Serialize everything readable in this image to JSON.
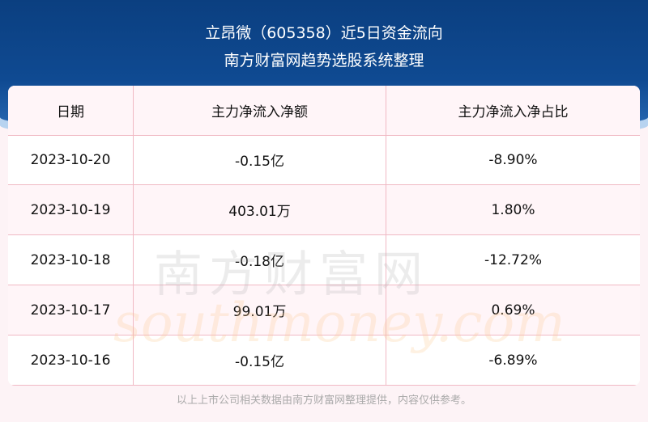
{
  "header": {
    "title": "立昂微（605358）近5日资金流向",
    "subtitle": "南方财富网趋势选股系统整理"
  },
  "table": {
    "columns": [
      "日期",
      "主力净流入净额",
      "主力净流入净占比"
    ],
    "rows": [
      [
        "2023-10-20",
        "-0.15亿",
        "-8.90%"
      ],
      [
        "2023-10-19",
        "403.01万",
        "1.80%"
      ],
      [
        "2023-10-18",
        "-0.18亿",
        "-12.72%"
      ],
      [
        "2023-10-17",
        "99.01万",
        "0.69%"
      ],
      [
        "2023-10-16",
        "-0.15亿",
        "-6.89%"
      ]
    ]
  },
  "watermark": {
    "cn": "南方财富网",
    "en": "southmoney.com"
  },
  "footer": "以上上市公司相关数据由南方财富网整理提供，内容仅供参考。"
}
